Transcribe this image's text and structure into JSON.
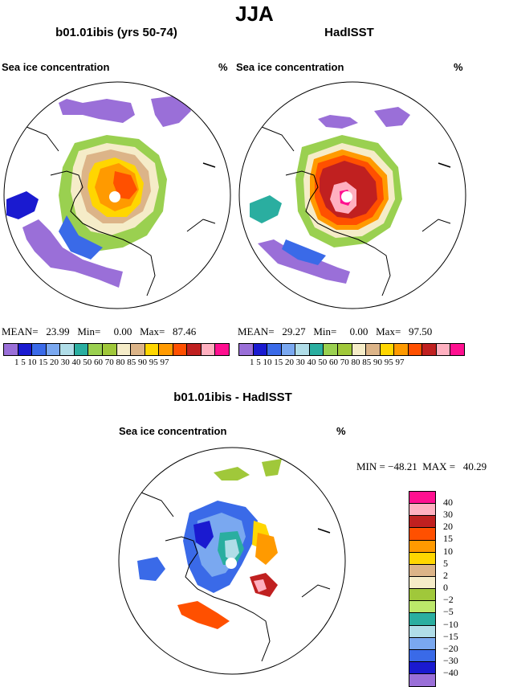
{
  "season_title": "JJA",
  "panel_left": {
    "title": "b01.01ibis (yrs 50-74)",
    "variable": "Sea ice concentration",
    "units": "%",
    "stats": "MEAN=   23.99   Min=     0.00   Max=   87.46"
  },
  "panel_right": {
    "title": "HadISST",
    "variable": "Sea ice concentration",
    "units": "%",
    "stats": "MEAN=   29.27   Min=     0.00   Max=   97.50"
  },
  "colorbar_top": {
    "labels": "1   5  10 15  20  30  40  50  60  70  80  85  90  95  97",
    "colors": [
      "#9a6fd8",
      "#1a1ad0",
      "#3a6ae8",
      "#7aa8f0",
      "#b0dde8",
      "#2aaea0",
      "#9ad050",
      "#a0c83a",
      "#f5ecc8",
      "#dcb488",
      "#ffd600",
      "#ff9a00",
      "#ff5000",
      "#c02020",
      "#ffb0c0",
      "#ff1090"
    ]
  },
  "panel_diff": {
    "title": "b01.01ibis - HadISST",
    "variable": "Sea ice concentration",
    "units": "%",
    "minmax": "MIN = −48.21  MAX =   40.29"
  },
  "colorbar_diff": {
    "labels": [
      "40",
      "30",
      "20",
      "15",
      "10",
      "5",
      "2",
      "0",
      "−2",
      "−5",
      "−10",
      "−15",
      "−20",
      "−30",
      "−40"
    ],
    "colors": [
      "#ff1090",
      "#ffb0c0",
      "#c02020",
      "#ff5000",
      "#ff9a00",
      "#ffd600",
      "#dcb488",
      "#f5ecc8",
      "#a0c83a",
      "#bce86a",
      "#2aaea0",
      "#b0dde8",
      "#7aa8f0",
      "#3a6ae8",
      "#1a1ad0",
      "#9a6fd8"
    ]
  }
}
